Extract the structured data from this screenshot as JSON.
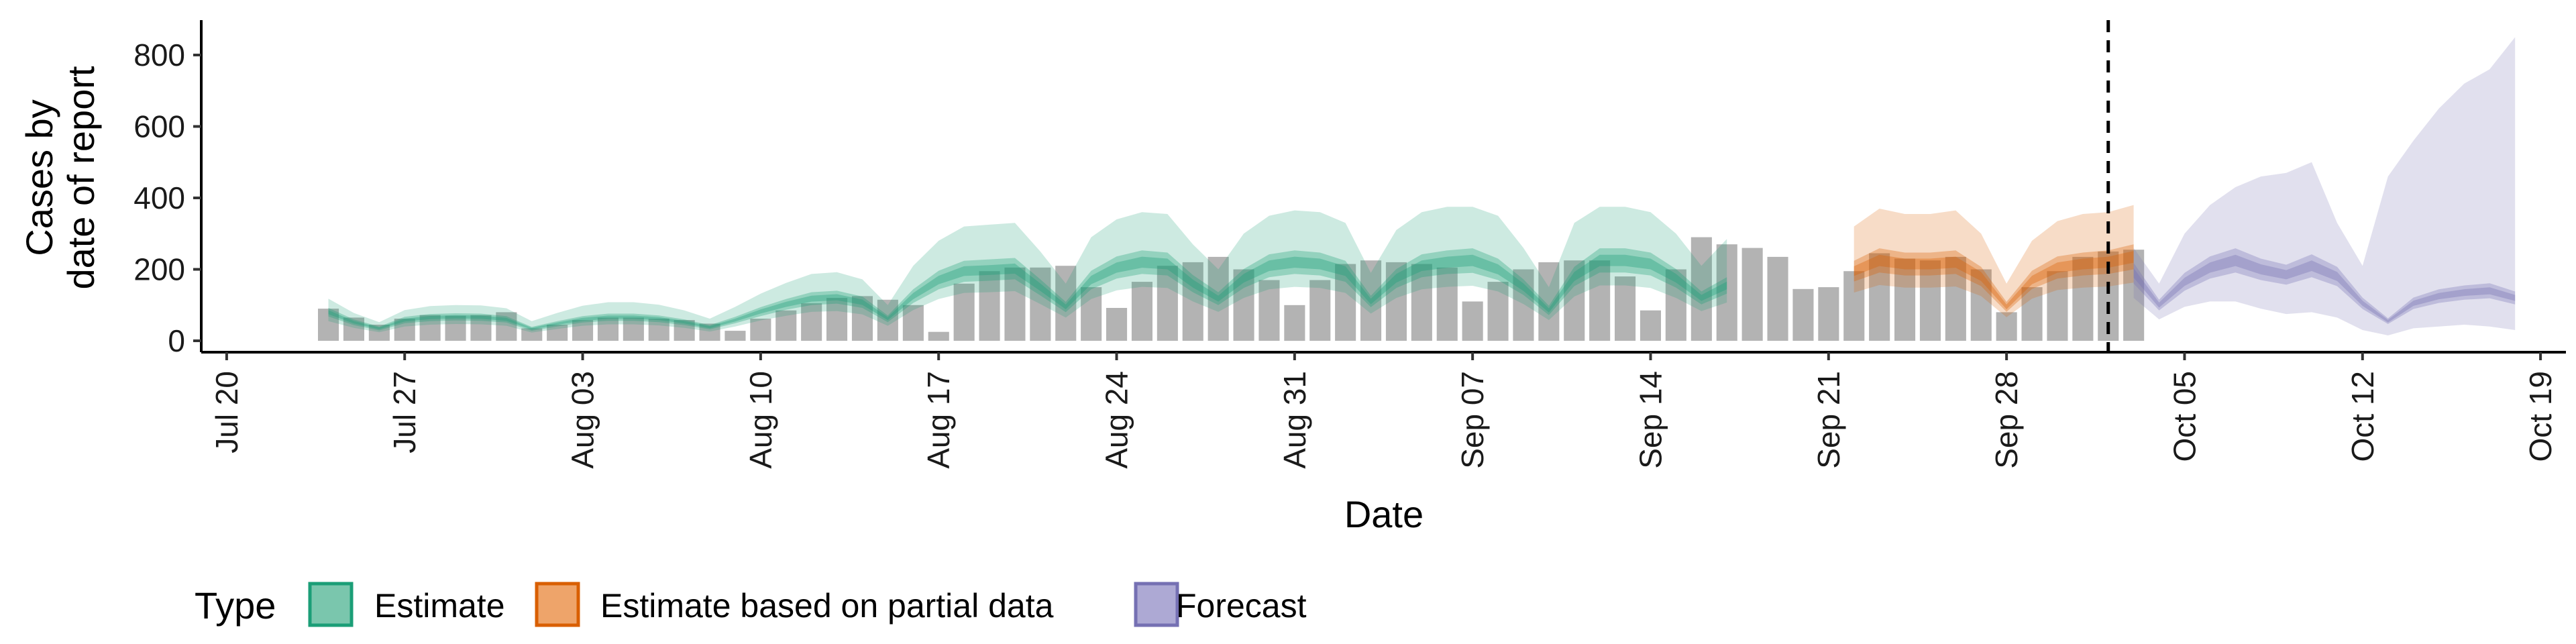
{
  "chart_data": {
    "type": "bar",
    "title": "",
    "xlabel": "Date",
    "ylabel": [
      "Cases by",
      "date of report"
    ],
    "x_range": [
      "2020-07-19",
      "2020-10-20"
    ],
    "ylim": [
      0,
      900
    ],
    "yticks": [
      0,
      200,
      400,
      600,
      800
    ],
    "xticks": [
      {
        "date": "2020-07-20",
        "label": "Jul 20"
      },
      {
        "date": "2020-07-27",
        "label": "Jul 27"
      },
      {
        "date": "2020-08-03",
        "label": "Aug 03"
      },
      {
        "date": "2020-08-10",
        "label": "Aug 10"
      },
      {
        "date": "2020-08-17",
        "label": "Aug 17"
      },
      {
        "date": "2020-08-24",
        "label": "Aug 24"
      },
      {
        "date": "2020-08-31",
        "label": "Aug 31"
      },
      {
        "date": "2020-09-07",
        "label": "Sep 07"
      },
      {
        "date": "2020-09-14",
        "label": "Sep 14"
      },
      {
        "date": "2020-09-21",
        "label": "Sep 21"
      },
      {
        "date": "2020-09-28",
        "label": "Sep 28"
      },
      {
        "date": "2020-10-05",
        "label": "Oct 05"
      },
      {
        "date": "2020-10-12",
        "label": "Oct 12"
      },
      {
        "date": "2020-10-19",
        "label": "Oct 19"
      }
    ],
    "grid": false,
    "vline_date": "2020-10-02",
    "bar_color": "#b3b3b3",
    "reported_cases": {
      "start_date": "2020-07-24",
      "values": [
        90,
        65,
        45,
        62,
        72,
        70,
        72,
        80,
        35,
        45,
        58,
        65,
        65,
        62,
        58,
        48,
        28,
        62,
        85,
        105,
        120,
        125,
        115,
        100,
        25,
        160,
        195,
        205,
        205,
        210,
        150,
        92,
        165,
        210,
        220,
        235,
        200,
        170,
        100,
        170,
        215,
        225,
        220,
        215,
        205,
        110,
        165,
        200,
        220,
        225,
        225,
        180,
        85,
        200,
        290,
        270,
        260,
        235,
        145,
        150,
        195,
        245,
        230,
        225,
        235,
        200,
        80,
        150,
        195,
        235,
        250,
        255
      ]
    },
    "legend": {
      "title": "Type",
      "position": "bottom-left",
      "items": [
        {
          "label": "Estimate",
          "fill": "#7ac6ad",
          "stroke": "#1b9e77"
        },
        {
          "label": "Estimate based on partial data",
          "fill": "#eea46a",
          "stroke": "#d95f02"
        },
        {
          "label": "Forecast",
          "fill": "#ada9d4",
          "stroke": "#7570b3"
        }
      ]
    },
    "series": [
      {
        "type_label": "Estimate",
        "color": "#1b9e77",
        "start_date": "2020-07-24",
        "median": [
          80,
          52,
          35,
          58,
          65,
          67,
          66,
          60,
          34,
          48,
          60,
          66,
          66,
          62,
          52,
          38,
          58,
          82,
          102,
          118,
          122,
          108,
          62,
          125,
          170,
          195,
          198,
          202,
          150,
          95,
          170,
          205,
          220,
          215,
          160,
          118,
          175,
          210,
          220,
          215,
          195,
          110,
          175,
          210,
          220,
          225,
          200,
          150,
          85,
          180,
          225,
          225,
          215,
          175,
          120,
          155
        ],
        "q25": [
          68,
          44,
          29,
          49,
          55,
          57,
          56,
          51,
          28,
          40,
          51,
          56,
          56,
          52,
          44,
          32,
          49,
          69,
          87,
          100,
          104,
          92,
          52,
          106,
          144,
          165,
          168,
          172,
          127,
          80,
          144,
          174,
          187,
          183,
          136,
          100,
          148,
          178,
          187,
          183,
          165,
          94,
          148,
          178,
          187,
          190,
          170,
          128,
          72,
          153,
          191,
          191,
          183,
          149,
          102,
          132
        ],
        "q75": [
          92,
          60,
          40,
          67,
          75,
          77,
          76,
          69,
          39,
          55,
          69,
          76,
          76,
          71,
          60,
          44,
          67,
          94,
          117,
          136,
          140,
          124,
          71,
          144,
          196,
          224,
          228,
          232,
          172,
          109,
          196,
          236,
          253,
          247,
          184,
          136,
          201,
          242,
          253,
          247,
          224,
          126,
          201,
          242,
          253,
          259,
          230,
          172,
          98,
          207,
          259,
          259,
          247,
          201,
          138,
          178
        ],
        "lo90": [
          55,
          36,
          24,
          40,
          45,
          47,
          46,
          42,
          23,
          33,
          42,
          46,
          46,
          43,
          36,
          26,
          40,
          57,
          70,
          81,
          83,
          74,
          42,
          86,
          117,
          134,
          136,
          139,
          103,
          65,
          117,
          141,
          151,
          148,
          110,
          81,
          120,
          144,
          151,
          148,
          134,
          76,
          120,
          144,
          151,
          154,
          138,
          103,
          58,
          124,
          155,
          155,
          148,
          120,
          83,
          107
        ],
        "hi90": [
          118,
          78,
          52,
          86,
          97,
          100,
          99,
          91,
          55,
          78,
          98,
          108,
          108,
          101,
          85,
          62,
          95,
          132,
          162,
          187,
          192,
          172,
          100,
          210,
          280,
          320,
          325,
          330,
          250,
          160,
          290,
          340,
          360,
          355,
          270,
          200,
          300,
          350,
          365,
          360,
          330,
          190,
          310,
          360,
          375,
          375,
          350,
          260,
          150,
          330,
          375,
          375,
          360,
          300,
          210,
          285
        ]
      },
      {
        "type_label": "Estimate based on partial data",
        "color": "#d95f02",
        "start_date": "2020-09-22",
        "median": [
          195,
          225,
          215,
          215,
          220,
          180,
          95,
          170,
          205,
          215,
          220,
          235
        ],
        "q25": [
          166,
          191,
          183,
          183,
          187,
          153,
          81,
          145,
          174,
          183,
          187,
          200
        ],
        "q75": [
          224,
          259,
          247,
          247,
          253,
          207,
          109,
          196,
          236,
          247,
          253,
          270
        ],
        "lo90": [
          135,
          156,
          149,
          149,
          152,
          125,
          66,
          118,
          142,
          149,
          152,
          163
        ],
        "hi90": [
          320,
          370,
          355,
          355,
          365,
          300,
          160,
          280,
          335,
          355,
          360,
          380
        ]
      },
      {
        "type_label": "Forecast",
        "color": "#7570b3",
        "start_date": "2020-10-03",
        "median": [
          190,
          100,
          165,
          205,
          225,
          200,
          185,
          210,
          180,
          105,
          55,
          105,
          125,
          135,
          140,
          120
        ],
        "q25": [
          160,
          85,
          140,
          174,
          191,
          170,
          157,
          178,
          153,
          89,
          47,
          89,
          106,
          115,
          119,
          102
        ],
        "q75": [
          218,
          115,
          190,
          236,
          259,
          230,
          213,
          242,
          207,
          121,
          63,
          121,
          144,
          155,
          161,
          138
        ],
        "lo90": [
          120,
          60,
          95,
          110,
          110,
          90,
          75,
          80,
          65,
          30,
          15,
          35,
          40,
          45,
          40,
          30
        ],
        "hi90": [
          260,
          160,
          300,
          380,
          430,
          460,
          470,
          500,
          330,
          210,
          460,
          560,
          650,
          720,
          760,
          850
        ]
      }
    ]
  }
}
